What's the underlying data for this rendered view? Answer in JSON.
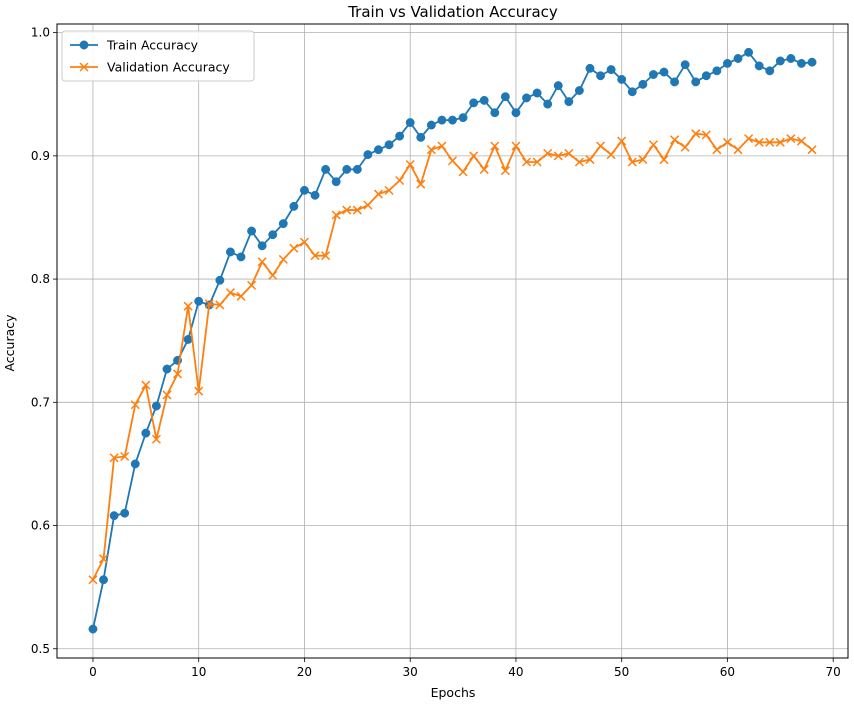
{
  "chart_data": {
    "type": "line",
    "title": "Train vs Validation Accuracy",
    "xlabel": "Epochs",
    "ylabel": "Accuracy",
    "xlim": [
      -3.4,
      71.4
    ],
    "ylim": [
      0.4925,
      1.007
    ],
    "xticks": [
      0,
      10,
      20,
      30,
      40,
      50,
      60,
      70
    ],
    "yticks": [
      0.5,
      0.6,
      0.7,
      0.8,
      0.9,
      1.0
    ],
    "xtick_labels": [
      "0",
      "10",
      "20",
      "30",
      "40",
      "50",
      "60",
      "70"
    ],
    "ytick_labels": [
      "0.5",
      "0.6",
      "0.7",
      "0.8",
      "0.9",
      "1.0"
    ],
    "grid": true,
    "legend_position": "top-left",
    "x": [
      0,
      1,
      2,
      3,
      4,
      5,
      6,
      7,
      8,
      9,
      10,
      11,
      12,
      13,
      14,
      15,
      16,
      17,
      18,
      19,
      20,
      21,
      22,
      23,
      24,
      25,
      26,
      27,
      28,
      29,
      30,
      31,
      32,
      33,
      34,
      35,
      36,
      37,
      38,
      39,
      40,
      41,
      42,
      43,
      44,
      45,
      46,
      47,
      48,
      49,
      50,
      51,
      52,
      53,
      54,
      55,
      56,
      57,
      58,
      59,
      60,
      61,
      62,
      63,
      64,
      65,
      66,
      67,
      68
    ],
    "series": [
      {
        "name": "Train Accuracy",
        "color": "#1f77b4",
        "marker": "circle",
        "values": [
          0.516,
          0.556,
          0.608,
          0.61,
          0.65,
          0.675,
          0.697,
          0.727,
          0.734,
          0.751,
          0.782,
          0.779,
          0.799,
          0.822,
          0.818,
          0.839,
          0.827,
          0.836,
          0.845,
          0.859,
          0.872,
          0.868,
          0.889,
          0.879,
          0.889,
          0.889,
          0.901,
          0.905,
          0.909,
          0.916,
          0.927,
          0.915,
          0.925,
          0.929,
          0.929,
          0.931,
          0.943,
          0.945,
          0.935,
          0.948,
          0.935,
          0.947,
          0.951,
          0.942,
          0.957,
          0.944,
          0.953,
          0.971,
          0.965,
          0.97,
          0.962,
          0.952,
          0.958,
          0.966,
          0.968,
          0.96,
          0.974,
          0.96,
          0.965,
          0.969,
          0.975,
          0.979,
          0.984,
          0.973,
          0.969,
          0.977,
          0.979,
          0.975,
          0.976
        ]
      },
      {
        "name": "Validation Accuracy",
        "color": "#ff7f0e",
        "marker": "x",
        "values": [
          0.556,
          0.573,
          0.655,
          0.656,
          0.698,
          0.714,
          0.67,
          0.706,
          0.723,
          0.778,
          0.709,
          0.78,
          0.779,
          0.789,
          0.786,
          0.795,
          0.814,
          0.803,
          0.816,
          0.825,
          0.83,
          0.819,
          0.819,
          0.852,
          0.856,
          0.856,
          0.86,
          0.869,
          0.872,
          0.88,
          0.893,
          0.877,
          0.905,
          0.908,
          0.896,
          0.887,
          0.9,
          0.889,
          0.908,
          0.888,
          0.908,
          0.895,
          0.895,
          0.902,
          0.9,
          0.902,
          0.895,
          0.897,
          0.908,
          0.901,
          0.912,
          0.895,
          0.897,
          0.909,
          0.897,
          0.913,
          0.907,
          0.918,
          0.917,
          0.905,
          0.911,
          0.905,
          0.914,
          0.911,
          0.911,
          0.911,
          0.914,
          0.912,
          0.905
        ]
      }
    ]
  }
}
